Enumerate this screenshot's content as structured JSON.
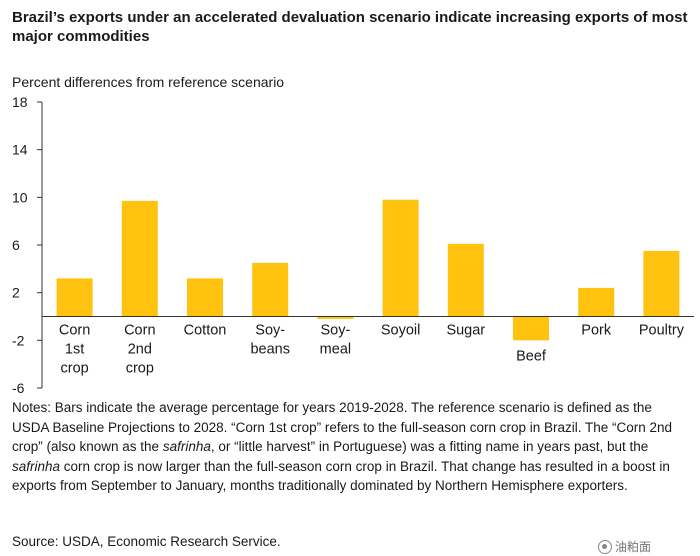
{
  "chart_data": {
    "type": "bar",
    "title": "Brazil’s exports under an accelerated devaluation scenario indicate increasing exports of most major commodities",
    "ylabel": "Percent differences from reference scenario",
    "xlabel": "",
    "ylim": [
      -6,
      18
    ],
    "yticks": [
      -6,
      -2,
      2,
      6,
      10,
      14,
      18
    ],
    "categories": [
      [
        "Corn",
        "1st",
        "crop"
      ],
      [
        "Corn",
        "2nd",
        "crop"
      ],
      [
        "Cotton"
      ],
      [
        "Soy-",
        "beans"
      ],
      [
        "Soy-",
        "meal"
      ],
      [
        "Soyoil"
      ],
      [
        "Sugar"
      ],
      [
        "Beef"
      ],
      [
        "Pork"
      ],
      [
        "Poultry"
      ]
    ],
    "values": [
      3.2,
      9.7,
      3.2,
      4.5,
      -0.2,
      9.8,
      6.1,
      -2.0,
      2.4,
      5.5
    ],
    "bar_color": "#FFC20E",
    "axis_color": "#333333",
    "legend": "none",
    "grid": false
  },
  "notes": {
    "n1": "Notes: Bars indicate the average percentage for years 2019-2028. The reference scenario is defined as the USDA Baseline Projections to 2028. “Corn 1st crop” refers to the full-season corn crop in Brazil. The “Corn 2nd crop” (also known as the ",
    "n2": "safrinha",
    "n3": ", or “little harvest” in Portuguese) was a fitting name in years past, but the ",
    "n4": "safrinha",
    "n5": " corn crop is now larger than the full-season corn crop in Brazil. That change has resulted in a boost in exports from September to January, months traditionally dominated by Northern Hemisphere exporters."
  },
  "source": "Source: USDA, Economic Research Service.",
  "watermark": "油粕面"
}
